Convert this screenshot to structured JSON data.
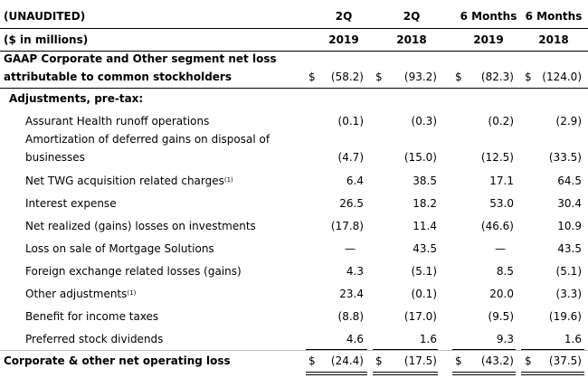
{
  "header": {
    "row1_label": "(UNAUDITED)",
    "row2_label": "($ in millions)",
    "columns": [
      {
        "period": "2Q",
        "year": "2019"
      },
      {
        "period": "2Q",
        "year": "2018"
      },
      {
        "period": "6 Months",
        "year": "2019"
      },
      {
        "period": "6 Months",
        "year": "2018"
      }
    ]
  },
  "gaap_row": {
    "label_line1": "GAAP Corporate and Other segment net loss",
    "label_line2": "attributable to common stockholders",
    "currency_symbol": "$",
    "values": [
      "(58.2)",
      "(93.2)",
      "(82.3)",
      "(124.0)"
    ]
  },
  "adjustments_heading": "Adjustments, pre-tax:",
  "adjustments": [
    {
      "label": "Assurant Health runoff operations",
      "values": [
        "(0.1)",
        "(0.3)",
        "(0.2)",
        "(2.9)"
      ]
    },
    {
      "label_line1": "Amortization of deferred gains on disposal of",
      "label": "businesses",
      "values": [
        "(4.7)",
        "(15.0)",
        "(12.5)",
        "(33.5)"
      ]
    },
    {
      "label": "Net TWG acquisition related charges",
      "footnote": "(1)",
      "values": [
        "6.4",
        "38.5",
        "17.1",
        "64.5"
      ]
    },
    {
      "label": "Interest expense",
      "values": [
        "26.5",
        "18.2",
        "53.0",
        "30.4"
      ]
    },
    {
      "label": "Net realized (gains) losses on investments",
      "values": [
        "(17.8)",
        "11.4",
        "(46.6)",
        "10.9"
      ]
    },
    {
      "label": "Loss on sale of Mortgage Solutions",
      "values": [
        "—",
        "43.5",
        "—",
        "43.5"
      ]
    },
    {
      "label": "Foreign exchange related losses (gains)",
      "values": [
        "4.3",
        "(5.1)",
        "8.5",
        "(5.1)"
      ]
    },
    {
      "label": "Other adjustments",
      "footnote": "(1)",
      "values": [
        "23.4",
        "(0.1)",
        "20.0",
        "(3.3)"
      ]
    },
    {
      "label": "Benefit for income taxes",
      "values": [
        "(8.8)",
        "(17.0)",
        "(9.5)",
        "(19.6)"
      ]
    },
    {
      "label": "Preferred stock dividends",
      "values": [
        "4.6",
        "1.6",
        "9.3",
        "1.6"
      ]
    }
  ],
  "total_row": {
    "label": "Corporate & other net operating loss",
    "currency_symbol": "$",
    "values": [
      "(24.4)",
      "(17.5)",
      "(43.2)",
      "(37.5)"
    ]
  }
}
